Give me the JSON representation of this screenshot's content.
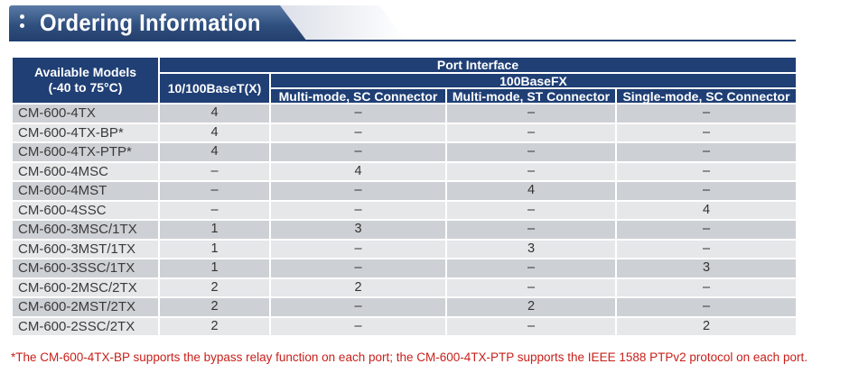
{
  "header": {
    "title": "Ordering Information"
  },
  "table": {
    "col_models": "Available Models",
    "col_models_range": "(-40 to 75°C)",
    "port_interface": "Port Interface",
    "col_tx": "10/100BaseT(X)",
    "fx_group": "100BaseFX",
    "col_mm_sc": "Multi-mode, SC Connector",
    "col_mm_st": "Multi-mode, ST Connector",
    "col_sm_sc": "Single-mode, SC Connector",
    "rows": [
      {
        "model": "CM-600-4TX",
        "tx": "4",
        "mm_sc": "–",
        "mm_st": "–",
        "sm_sc": "–"
      },
      {
        "model": "CM-600-4TX-BP*",
        "tx": "4",
        "mm_sc": "–",
        "mm_st": "–",
        "sm_sc": "–"
      },
      {
        "model": "CM-600-4TX-PTP*",
        "tx": "4",
        "mm_sc": "–",
        "mm_st": "–",
        "sm_sc": "–"
      },
      {
        "model": "CM-600-4MSC",
        "tx": "–",
        "mm_sc": "4",
        "mm_st": "–",
        "sm_sc": "–"
      },
      {
        "model": "CM-600-4MST",
        "tx": "–",
        "mm_sc": "–",
        "mm_st": "4",
        "sm_sc": "–"
      },
      {
        "model": "CM-600-4SSC",
        "tx": "–",
        "mm_sc": "–",
        "mm_st": "–",
        "sm_sc": "4"
      },
      {
        "model": "CM-600-3MSC/1TX",
        "tx": "1",
        "mm_sc": "3",
        "mm_st": "–",
        "sm_sc": "–"
      },
      {
        "model": "CM-600-3MST/1TX",
        "tx": "1",
        "mm_sc": "–",
        "mm_st": "3",
        "sm_sc": "–"
      },
      {
        "model": "CM-600-3SSC/1TX",
        "tx": "1",
        "mm_sc": "–",
        "mm_st": "–",
        "sm_sc": "3"
      },
      {
        "model": "CM-600-2MSC/2TX",
        "tx": "2",
        "mm_sc": "2",
        "mm_st": "–",
        "sm_sc": "–"
      },
      {
        "model": "CM-600-2MST/2TX",
        "tx": "2",
        "mm_sc": "–",
        "mm_st": "2",
        "sm_sc": "–"
      },
      {
        "model": "CM-600-2SSC/2TX",
        "tx": "2",
        "mm_sc": "–",
        "mm_st": "–",
        "sm_sc": "2"
      }
    ]
  },
  "footnote": "*The CM-600-4TX-BP supports the bypass relay function on each port; the CM-600-4TX-PTP supports the IEEE 1588 PTPv2 protocol on each port.",
  "colors": {
    "header_blue": "#1f3f75",
    "row_dark": "#cdd0d4",
    "row_light": "#e6e7e9",
    "note_red": "#c8201a"
  }
}
